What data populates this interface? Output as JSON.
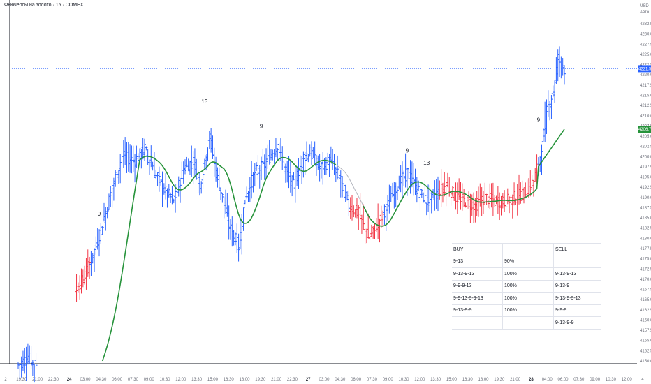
{
  "title": "Фьючерсы на золото · 15 · COMEX",
  "currency": "USD",
  "currency_sub": "Авто",
  "price_line_color": "#2962ff",
  "colors": {
    "up": "#2962ff",
    "down": "#f23645",
    "ma_green": "#27933b",
    "ma_grey": "#b2b5be",
    "current_price_bg": "#2962ff",
    "ma_price_bg": "#27933b"
  },
  "current_price_label": "4221.5",
  "ma_price_label": "4206.7",
  "chart_data": {
    "type": "bar",
    "ylim": [
      4148,
      4235
    ],
    "y_ticks": [
      "4232.5",
      "4230.0",
      "4227.5",
      "4225.0",
      "4222.5",
      "4220.0",
      "4217.5",
      "4215.0",
      "4212.5",
      "4210.0",
      "4207.5",
      "4205.0",
      "4202.5",
      "4200.0",
      "4197.5",
      "4195.0",
      "4192.5",
      "4190.0",
      "4187.5",
      "4185.0",
      "4182.5",
      "4180.0",
      "4177.5",
      "4175.0",
      "4172.5",
      "4170.0",
      "4167.5",
      "4165.0",
      "4162.5",
      "4160.0",
      "4157.5",
      "4155.0",
      "4152.5",
      "4150.0"
    ],
    "x_ticks": [
      {
        "label": "2",
        "day": false
      },
      {
        "label": "19:30",
        "day": false
      },
      {
        "label": "21:00",
        "day": false
      },
      {
        "label": "22:30",
        "day": false
      },
      {
        "label": "24",
        "day": true
      },
      {
        "label": "03:00",
        "day": false
      },
      {
        "label": "04:30",
        "day": false
      },
      {
        "label": "06:00",
        "day": false
      },
      {
        "label": "07:30",
        "day": false
      },
      {
        "label": "09:00",
        "day": false
      },
      {
        "label": "10:30",
        "day": false
      },
      {
        "label": "12:00",
        "day": false
      },
      {
        "label": "13:30",
        "day": false
      },
      {
        "label": "15:00",
        "day": false
      },
      {
        "label": "16:30",
        "day": false
      },
      {
        "label": "18:00",
        "day": false
      },
      {
        "label": "19:30",
        "day": false
      },
      {
        "label": "21:00",
        "day": false
      },
      {
        "label": "22:30",
        "day": false
      },
      {
        "label": "27",
        "day": true
      },
      {
        "label": "03:00",
        "day": false
      },
      {
        "label": "04:30",
        "day": false
      },
      {
        "label": "06:00",
        "day": false
      },
      {
        "label": "07:30",
        "day": false
      },
      {
        "label": "09:00",
        "day": false
      },
      {
        "label": "10:30",
        "day": false
      },
      {
        "label": "12:00",
        "day": false
      },
      {
        "label": "13:30",
        "day": false
      },
      {
        "label": "15:00",
        "day": false
      },
      {
        "label": "16:30",
        "day": false
      },
      {
        "label": "18:00",
        "day": false
      },
      {
        "label": "19:30",
        "day": false
      },
      {
        "label": "21:00",
        "day": false
      },
      {
        "label": "28",
        "day": true
      },
      {
        "label": "04:00",
        "day": false
      },
      {
        "label": "06:00",
        "day": false
      },
      {
        "label": "07:30",
        "day": false
      },
      {
        "label": "09:00",
        "day": false
      },
      {
        "label": "10:30",
        "day": false
      },
      {
        "label": "12:00",
        "day": false
      },
      {
        "label": "4",
        "day": false
      }
    ],
    "annotations": [
      {
        "text": "9",
        "bar": 50,
        "y": 4185.5
      },
      {
        "text": "13",
        "bar": 115,
        "y": 4213.0
      },
      {
        "text": "9",
        "bar": 150,
        "y": 4207.0
      },
      {
        "text": "9",
        "bar": 240,
        "y": 4201.0
      },
      {
        "text": "13",
        "bar": 252,
        "y": 4198.0
      },
      {
        "text": "9",
        "bar": 321,
        "y": 4208.5
      }
    ],
    "bars_summary": "OHLC bars, 15-minute, gold futures, approx. 338 bars",
    "ma": {
      "from_bar": 52,
      "start_value": 4150.0,
      "end_value": 4206.7
    }
  },
  "table": {
    "rows": [
      [
        "BUY",
        "",
        "SELL"
      ],
      [
        "9-13",
        "90%",
        ""
      ],
      [
        "9-13-9-13",
        "100%",
        "9-13-9-13"
      ],
      [
        "9-9-9-13",
        "100%",
        "9-13-9"
      ],
      [
        "9-9-13-9-9-13",
        "100%",
        "9-13-9-9-13"
      ],
      [
        "9-13-9-9",
        "100%",
        "9-9-9"
      ],
      [
        "",
        "",
        "9-13-9-9"
      ]
    ]
  }
}
